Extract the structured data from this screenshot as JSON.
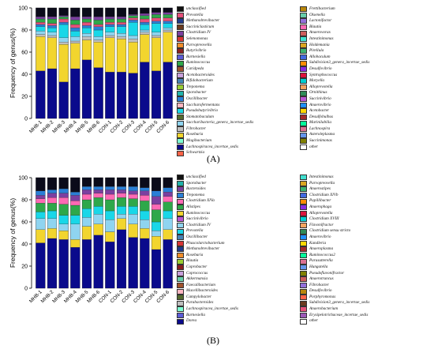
{
  "chart_data": [
    {
      "panel_label": "(A)",
      "type": "bar",
      "stacked": true,
      "ylabel": "Frequency of genus(%)",
      "ylim": [
        0,
        100
      ],
      "yticks": [
        0,
        20,
        40,
        60,
        80,
        100
      ],
      "categories": [
        "MHB-1",
        "MHB-2",
        "MHB-3",
        "MHB-4",
        "MHB-5",
        "MHB-6",
        "CON-1",
        "CON-2",
        "CON-3",
        "CON-4",
        "CON-5",
        "CON-6"
      ],
      "series": [
        {
          "name": "Lachnospiracea_incertae_sedis",
          "color": "#0a0a8c",
          "values": [
            43,
            45,
            33,
            45,
            53,
            46,
            42,
            42,
            41,
            51,
            43,
            51
          ]
        },
        {
          "name": "Roseburia",
          "color": "#f2d52e",
          "values": [
            31,
            28,
            34,
            23,
            18,
            23,
            31,
            30,
            28,
            25,
            30,
            27
          ]
        },
        {
          "name": "Fibrobacter",
          "color": "#bfbfbf",
          "values": [
            2,
            2,
            2,
            2,
            3,
            2,
            2,
            2,
            3,
            2,
            2,
            2
          ]
        },
        {
          "name": "Saccharibacteria_genera_incertae_sedis",
          "color": "#8fd4f0",
          "values": [
            3,
            3,
            4,
            4,
            3,
            3,
            3,
            3,
            3,
            2,
            3,
            2
          ]
        },
        {
          "name": "Pseudobutyrivibrio",
          "color": "#19d7e8",
          "values": [
            4,
            4,
            12,
            5,
            5,
            6,
            5,
            6,
            12,
            5,
            8,
            4
          ]
        },
        {
          "name": "Oscillibacter",
          "color": "#2a7fd6",
          "values": [
            2,
            2,
            2,
            3,
            2,
            3,
            2,
            2,
            2,
            2,
            2,
            2
          ]
        },
        {
          "name": "Prevotella",
          "color": "#e6507a",
          "values": [
            2,
            2,
            3,
            3,
            3,
            2,
            2,
            2,
            2,
            3,
            3,
            3
          ]
        },
        {
          "name": "Ruminococcus",
          "color": "#2ea84a",
          "values": [
            3,
            4,
            2,
            4,
            3,
            4,
            3,
            3,
            2,
            3,
            3,
            3
          ]
        },
        {
          "name": "Clostridium IV",
          "color": "#7b3fa0",
          "values": [
            2,
            2,
            1,
            3,
            2,
            3,
            2,
            2,
            1,
            2,
            2,
            2
          ]
        },
        {
          "name": "Other",
          "color": "#0b0b1a",
          "values": [
            8,
            8,
            7,
            8,
            8,
            8,
            8,
            8,
            6,
            5,
            4,
            4
          ]
        }
      ],
      "legend": [
        {
          "label": "unclassified",
          "color": "#111111"
        },
        {
          "label": "Prevotella",
          "color": "#e6507a"
        },
        {
          "label": "Methanobrevibacter",
          "color": "#1f3b8c"
        },
        {
          "label": "Succiniclasticum",
          "color": "#6a3a1f"
        },
        {
          "label": "Clostridium IV",
          "color": "#7b3fa0"
        },
        {
          "label": "Selenomonas",
          "color": "#d73535"
        },
        {
          "label": "Parvopreovella",
          "color": "#f08d2b"
        },
        {
          "label": "Butyrivibrio",
          "color": "#8b1f1f"
        },
        {
          "label": "Barnesiella",
          "color": "#5c5cd6"
        },
        {
          "label": "Ruminococcus",
          "color": "#2ea84a"
        },
        {
          "label": "Caridpeda",
          "color": "#a0522d"
        },
        {
          "label": "Acetobacteroides",
          "color": "#c9a0dc"
        },
        {
          "label": "Bifidobacterium",
          "color": "#4682b4"
        },
        {
          "label": "Treponema",
          "color": "#9acd32"
        },
        {
          "label": "Sporobacter",
          "color": "#20b2aa"
        },
        {
          "label": "Oscillibacter",
          "color": "#2a7fd6"
        },
        {
          "label": "Saccharofermentans",
          "color": "#ffb6c1"
        },
        {
          "label": "Pseudobutyrivibrio",
          "color": "#19d7e8"
        },
        {
          "label": "Stomatobaculum",
          "color": "#556b2f"
        },
        {
          "label": "Saccharibacteria_genera_incertae_sedis",
          "color": "#8fd4f0"
        },
        {
          "label": "Fibrobacter",
          "color": "#bfbfbf"
        },
        {
          "label": "Roseburia",
          "color": "#f2d52e"
        },
        {
          "label": "Mogibacterium",
          "color": "#7fffd4"
        },
        {
          "label": "Lachnospiracea_incertae_sedis",
          "color": "#0a0a8c"
        },
        {
          "label": "Schwartzia",
          "color": "#ff6347"
        },
        {
          "label": "Frettibacterium",
          "color": "#b8860b"
        },
        {
          "label": "Olsenella",
          "color": "#66cdaa"
        },
        {
          "label": "Lactonifactor",
          "color": "#9370db"
        },
        {
          "label": "Blautia",
          "color": "#ff69b4"
        },
        {
          "label": "Anaerovorax",
          "color": "#cd5c5c"
        },
        {
          "label": "Intestinimonas",
          "color": "#40e0d0"
        },
        {
          "label": "Holdemania",
          "color": "#daa520"
        },
        {
          "label": "Pirellula",
          "color": "#3cb371"
        },
        {
          "label": "Allobaculum",
          "color": "#4169e1"
        },
        {
          "label": "Subdivision3_genera_incertae_sedis",
          "color": "#ff8c00"
        },
        {
          "label": "Desulfovibrio",
          "color": "#8a2be2"
        },
        {
          "label": "Syntrophococcus",
          "color": "#dc143c"
        },
        {
          "label": "Moryella",
          "color": "#00ced1"
        },
        {
          "label": "Alloprevotella",
          "color": "#f4a460"
        },
        {
          "label": "Ornithinus",
          "color": "#2e8b57"
        },
        {
          "label": "Succinivibrio",
          "color": "#ba55d3"
        },
        {
          "label": "Anaerovibrio",
          "color": "#1e90ff"
        },
        {
          "label": "Acetobacter",
          "color": "#ffd700"
        },
        {
          "label": "Desulfobulbus",
          "color": "#a52a2a"
        },
        {
          "label": "Marinilabilia",
          "color": "#00fa9a"
        },
        {
          "label": "Lachnospira",
          "color": "#db7093"
        },
        {
          "label": "Asteroleplasma",
          "color": "#6495ed"
        },
        {
          "label": "Succinimonas",
          "color": "#808000"
        },
        {
          "label": "other",
          "color": "#ffffff"
        }
      ]
    },
    {
      "panel_label": "(B)",
      "type": "bar",
      "stacked": true,
      "ylabel": "Frequency of genus(%)",
      "ylim": [
        0,
        100
      ],
      "yticks": [
        0,
        20,
        40,
        60,
        80,
        100
      ],
      "categories": [
        "MHB-1",
        "MHB-2",
        "MHB-3",
        "MHB-4",
        "MHB-5",
        "MHB-6",
        "CON-1",
        "CON-2",
        "CON-3",
        "CON-4",
        "CON-5",
        "CON-6"
      ],
      "series": [
        {
          "name": "Dorea",
          "color": "#0a0a8c",
          "values": [
            41,
            45,
            44,
            37,
            44,
            48,
            42,
            53,
            46,
            45,
            35,
            44
          ]
        },
        {
          "name": "Ruminococcus",
          "color": "#f2d52e",
          "values": [
            12,
            9,
            8,
            7,
            12,
            10,
            9,
            10,
            12,
            9,
            12,
            9
          ]
        },
        {
          "name": "Clostridium IV",
          "color": "#8fd4f0",
          "values": [
            10,
            9,
            6,
            14,
            8,
            9,
            11,
            4,
            9,
            8,
            5,
            10
          ]
        },
        {
          "name": "Prevotella",
          "color": "#19d7e8",
          "values": [
            6,
            7,
            8,
            8,
            8,
            7,
            8,
            7,
            7,
            8,
            8,
            7
          ]
        },
        {
          "name": "Alistipes",
          "color": "#2ea84a",
          "values": [
            8,
            7,
            10,
            9,
            8,
            8,
            10,
            8,
            7,
            9,
            11,
            8
          ]
        },
        {
          "name": "Clostridium XlVa",
          "color": "#ff69b4",
          "values": [
            4,
            5,
            6,
            4,
            5,
            4,
            5,
            4,
            4,
            5,
            5,
            5
          ]
        },
        {
          "name": "Bacteroides",
          "color": "#7b3fa0",
          "values": [
            3,
            4,
            4,
            5,
            4,
            3,
            4,
            3,
            3,
            4,
            7,
            4
          ]
        },
        {
          "name": "Treponema",
          "color": "#2a7fd6",
          "values": [
            4,
            3,
            4,
            3,
            3,
            3,
            3,
            3,
            4,
            3,
            5,
            4
          ]
        },
        {
          "name": "Other",
          "color": "#0b0b1a",
          "values": [
            12,
            11,
            10,
            13,
            8,
            8,
            8,
            8,
            8,
            9,
            12,
            9
          ]
        }
      ],
      "legend": [
        {
          "label": "unclassified",
          "color": "#111111"
        },
        {
          "label": "Sporobacter",
          "color": "#20b2aa"
        },
        {
          "label": "Bacteroides",
          "color": "#7b3fa0"
        },
        {
          "label": "Treponema",
          "color": "#2a7fd6"
        },
        {
          "label": "Clostridium XlVa",
          "color": "#ff69b4"
        },
        {
          "label": "Alistipes",
          "color": "#2ea84a"
        },
        {
          "label": "Ruminococcus",
          "color": "#f2d52e"
        },
        {
          "label": "Succinivibrio",
          "color": "#ba55d3"
        },
        {
          "label": "Clostridium IV",
          "color": "#8fd4f0"
        },
        {
          "label": "Prevotella",
          "color": "#19d7e8"
        },
        {
          "label": "Oscillibacter",
          "color": "#4682b4"
        },
        {
          "label": "Phascolarctobacterium",
          "color": "#d73535"
        },
        {
          "label": "Methanobrevibacter",
          "color": "#1f3b8c"
        },
        {
          "label": "Roseburia",
          "color": "#f08d2b"
        },
        {
          "label": "Blautia",
          "color": "#9acd32"
        },
        {
          "label": "Coprobacter",
          "color": "#8b1f1f"
        },
        {
          "label": "Coprococcus",
          "color": "#c9a0dc"
        },
        {
          "label": "Akkermansia",
          "color": "#66cdaa"
        },
        {
          "label": "Faecalibacterium",
          "color": "#a0522d"
        },
        {
          "label": "Macellibacteroides",
          "color": "#ffb6c1"
        },
        {
          "label": "Campylobacter",
          "color": "#556b2f"
        },
        {
          "label": "Parabacteroides",
          "color": "#bfbfbf"
        },
        {
          "label": "Lachnospiracea_incertae_sedis",
          "color": "#7fffd4"
        },
        {
          "label": "Barnesiella",
          "color": "#5c5cd6"
        },
        {
          "label": "Dorea",
          "color": "#0a0a8c"
        },
        {
          "label": "Intestinimonas",
          "color": "#40e0d0"
        },
        {
          "label": "Parvopreovella",
          "color": "#daa520"
        },
        {
          "label": "Anaerostipes",
          "color": "#3cb371"
        },
        {
          "label": "Clostridium XlVb",
          "color": "#4169e1"
        },
        {
          "label": "Papillibacter",
          "color": "#ff8c00"
        },
        {
          "label": "Anaerophaga",
          "color": "#8a2be2"
        },
        {
          "label": "Alloprevotella",
          "color": "#dc143c"
        },
        {
          "label": "Clostridium XVIII",
          "color": "#00ced1"
        },
        {
          "label": "Flavonifractor",
          "color": "#f4a460"
        },
        {
          "label": "Clostridium sensu stricto",
          "color": "#2e8b57"
        },
        {
          "label": "Anaerovibrio",
          "color": "#1e90ff"
        },
        {
          "label": "Kandleria",
          "color": "#ffd700"
        },
        {
          "label": "Anaeroplasma",
          "color": "#a52a2a"
        },
        {
          "label": "Ruminococcus2",
          "color": "#00fa9a"
        },
        {
          "label": "Parasutterella",
          "color": "#db7093"
        },
        {
          "label": "Hungatella",
          "color": "#6495ed"
        },
        {
          "label": "Pseudoflavonifractor",
          "color": "#808000"
        },
        {
          "label": "Anaerotruncus",
          "color": "#cd5c5c"
        },
        {
          "label": "Fibrobacter",
          "color": "#9370db"
        },
        {
          "label": "Desulfovibrio",
          "color": "#b8860b"
        },
        {
          "label": "Porphyromonas",
          "color": "#ff6347"
        },
        {
          "label": "Subdivision3_genera_incertae_sedis",
          "color": "#6a3a1f"
        },
        {
          "label": "Anaerobacterium",
          "color": "#e6507a"
        },
        {
          "label": "Erysipelotrichaceae_incertae_sedis",
          "color": "#9b59b6"
        },
        {
          "label": "other",
          "color": "#ffffff"
        }
      ]
    }
  ]
}
